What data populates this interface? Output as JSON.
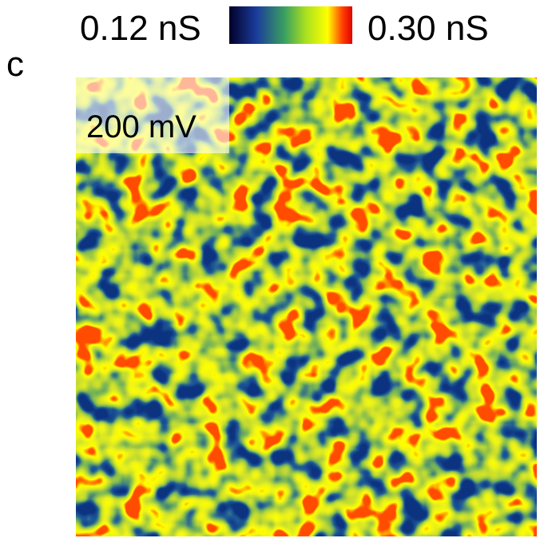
{
  "colorbar": {
    "min_label": "0.12 nS",
    "max_label": "0.30 nS"
  },
  "panel": {
    "label": "c",
    "inset_label": "200 mV"
  }
}
